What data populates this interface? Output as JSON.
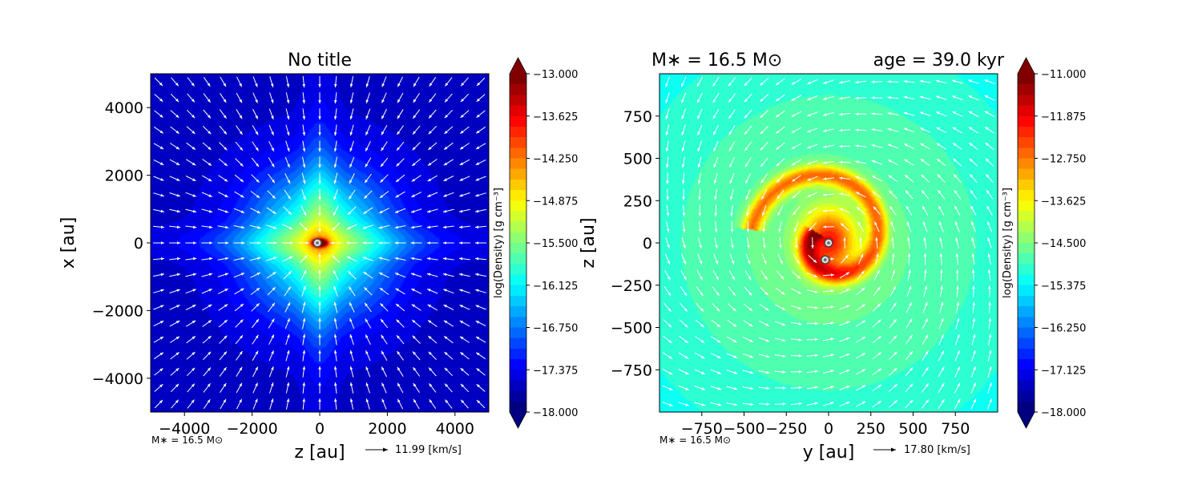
{
  "chart_data": [
    {
      "type": "heatmap",
      "title": "No title",
      "xlabel": "z [au]",
      "ylabel": "x [au]",
      "xlim": [
        -5000,
        5000
      ],
      "ylim": [
        -5000,
        5000
      ],
      "xticks": [
        -4000,
        -2000,
        0,
        2000,
        4000
      ],
      "yticks": [
        -4000,
        -2000,
        0,
        2000,
        4000
      ],
      "xtick_labels": [
        "−4000",
        "−2000",
        "0",
        "2000",
        "4000"
      ],
      "ytick_labels": [
        "−4000",
        "−2000",
        "0",
        "2000",
        "4000"
      ],
      "colorbar": {
        "label": "log(Density) [g cm⁻³]",
        "min": -18.0,
        "max": -13.0,
        "ticks": [
          -13.0,
          -13.625,
          -14.25,
          -14.875,
          -15.5,
          -16.125,
          -16.75,
          -17.375,
          -18.0
        ],
        "tick_labels": [
          "−13.000",
          "−13.625",
          "−14.250",
          "−14.875",
          "−15.500",
          "−16.125",
          "−16.750",
          "−17.375",
          "−18.000"
        ]
      },
      "mass_note": "M∗ = 16.5 M⊙",
      "arrow_scale_label": "11.99 [km/s]",
      "field": {
        "background": -17.6,
        "features": [
          {
            "kind": "gauss",
            "x": 0,
            "y": 0,
            "sx": 1500,
            "sy": 1500,
            "amp": 2.0
          },
          {
            "kind": "gauss",
            "x": 0,
            "y": 0,
            "sx": 2800,
            "sy": 350,
            "amp": 0.6
          },
          {
            "kind": "gauss",
            "x": 0,
            "y": 0,
            "sx": 350,
            "sy": 2800,
            "amp": 0.6
          },
          {
            "kind": "gauss",
            "x": 0,
            "y": 0,
            "sx": 130,
            "sy": 70,
            "amp": 4.5
          }
        ]
      },
      "sink_particles": [
        [
          -70,
          0
        ]
      ],
      "flow": "infall"
    },
    {
      "type": "heatmap",
      "title": "",
      "title_left": "M∗ = 16.5 M⊙",
      "title_right": "age = 39.0 kyr",
      "xlabel": "y [au]",
      "ylabel": "z [au]",
      "xlim": [
        -1000,
        1000
      ],
      "ylim": [
        -1000,
        1000
      ],
      "xticks": [
        -750,
        -500,
        -250,
        0,
        250,
        500,
        750
      ],
      "yticks": [
        -750,
        -500,
        -250,
        0,
        250,
        500,
        750
      ],
      "xtick_labels": [
        "−750",
        "−500",
        "−250",
        "0",
        "250",
        "500",
        "750"
      ],
      "ytick_labels": [
        "−750",
        "−500",
        "−250",
        "0",
        "250",
        "500",
        "750"
      ],
      "colorbar": {
        "label": "log(Density) [g cm⁻³]",
        "min": -18.0,
        "max": -11.0,
        "ticks": [
          -11.0,
          -11.875,
          -12.75,
          -13.625,
          -14.5,
          -15.375,
          -16.25,
          -17.125,
          -18.0
        ],
        "tick_labels": [
          "−11.000",
          "−11.875",
          "−12.750",
          "−13.625",
          "−14.500",
          "−15.375",
          "−16.250",
          "−17.125",
          "−18.000"
        ]
      },
      "mass_note": "M∗ = 16.5 M⊙",
      "arrow_scale_label": "17.80 [km/s]",
      "field": {
        "background": -15.5,
        "features": [
          {
            "kind": "gauss",
            "x": 0,
            "y": 0,
            "sx": 900,
            "sy": 900,
            "amp": 0.9
          },
          {
            "kind": "gauss",
            "x": 0,
            "y": 10,
            "sx": 110,
            "sy": 130,
            "amp": 2.6
          },
          {
            "kind": "spiral",
            "cx": 0,
            "cy": 20,
            "r0": 80,
            "r1": 460,
            "th0": 2.6,
            "th1": 9.3,
            "width": 42,
            "amp": 2.0
          }
        ]
      },
      "sink_particles": [
        [
          0,
          0
        ],
        [
          -20,
          -100
        ]
      ],
      "flow": "rotation"
    }
  ]
}
